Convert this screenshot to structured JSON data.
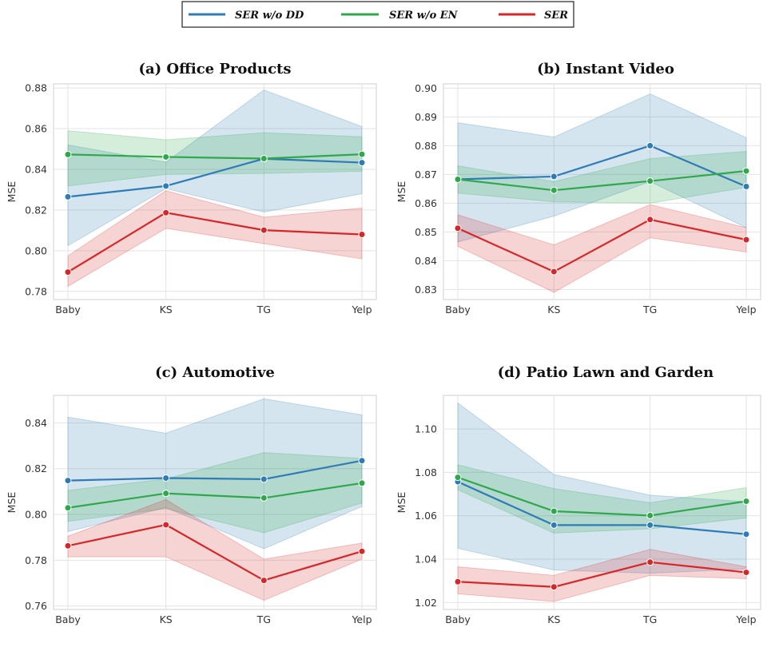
{
  "legend": {
    "entries": [
      {
        "label": "SER w/o DD",
        "color": "#2f7bb5"
      },
      {
        "label": "SER w/o EN",
        "color": "#2ea84a"
      },
      {
        "label": "SER",
        "color": "#d62728"
      }
    ]
  },
  "chart_data": [
    {
      "type": "line",
      "title": "(a) Office Products",
      "categories": [
        "Baby",
        "KS",
        "TG",
        "Yelp"
      ],
      "ylabel": "MSE",
      "ylim": [
        0.776,
        0.882
      ],
      "yticks": [
        0.78,
        0.8,
        0.82,
        0.84,
        0.86,
        0.88
      ],
      "ytick_labels": [
        "0.78",
        "0.80",
        "0.82",
        "0.84",
        "0.86",
        "0.88"
      ],
      "series": [
        {
          "name": "SER w/o DD",
          "color": "#2f7bb5",
          "values": [
            0.8265,
            0.8318,
            0.8452,
            0.8433
          ],
          "lower": [
            0.8025,
            0.8305,
            0.819,
            0.828
          ],
          "upper": [
            0.852,
            0.8435,
            0.879,
            0.861
          ]
        },
        {
          "name": "SER w/o EN",
          "color": "#2ea84a",
          "values": [
            0.8473,
            0.8461,
            0.8453,
            0.8474
          ],
          "lower": [
            0.8318,
            0.8375,
            0.838,
            0.839
          ],
          "upper": [
            0.859,
            0.8545,
            0.858,
            0.856
          ]
        },
        {
          "name": "SER",
          "color": "#d62728",
          "values": [
            0.7895,
            0.8187,
            0.8101,
            0.808
          ],
          "lower": [
            0.7825,
            0.811,
            0.8035,
            0.796
          ],
          "upper": [
            0.7975,
            0.8295,
            0.8165,
            0.821
          ]
        }
      ]
    },
    {
      "type": "line",
      "title": "(b) Instant Video",
      "categories": [
        "Baby",
        "KS",
        "TG",
        "Yelp"
      ],
      "ylabel": "MSE",
      "ylim": [
        0.8265,
        0.9015
      ],
      "yticks": [
        0.83,
        0.84,
        0.85,
        0.86,
        0.87,
        0.88,
        0.89,
        0.9
      ],
      "ytick_labels": [
        "0.83",
        "0.84",
        "0.85",
        "0.86",
        "0.87",
        "0.88",
        "0.89",
        "0.90"
      ],
      "series": [
        {
          "name": "SER w/o DD",
          "color": "#2f7bb5",
          "values": [
            0.8683,
            0.8693,
            0.88,
            0.8658
          ],
          "lower": [
            0.8465,
            0.8555,
            0.8675,
            0.8515
          ],
          "upper": [
            0.888,
            0.883,
            0.898,
            0.8828
          ]
        },
        {
          "name": "SER w/o EN",
          "color": "#2ea84a",
          "values": [
            0.8683,
            0.8645,
            0.8677,
            0.8712
          ],
          "lower": [
            0.8635,
            0.8605,
            0.86,
            0.8655
          ],
          "upper": [
            0.873,
            0.8675,
            0.8755,
            0.878
          ]
        },
        {
          "name": "SER",
          "color": "#d62728",
          "values": [
            0.8513,
            0.8362,
            0.8543,
            0.8473
          ],
          "lower": [
            0.845,
            0.829,
            0.848,
            0.843
          ],
          "upper": [
            0.856,
            0.8455,
            0.8595,
            0.8515
          ]
        }
      ]
    },
    {
      "type": "line",
      "title": "(c) Automotive",
      "categories": [
        "Baby",
        "KS",
        "TG",
        "Yelp"
      ],
      "ylabel": "MSE",
      "ylim": [
        0.7585,
        0.852
      ],
      "yticks": [
        0.76,
        0.78,
        0.8,
        0.82,
        0.84
      ],
      "ytick_labels": [
        "0.76",
        "0.78",
        "0.80",
        "0.82",
        "0.84"
      ],
      "series": [
        {
          "name": "SER w/o DD",
          "color": "#2f7bb5",
          "values": [
            0.8148,
            0.8159,
            0.8154,
            0.8235
          ],
          "lower": [
            0.7925,
            0.803,
            0.785,
            0.8035
          ],
          "upper": [
            0.8425,
            0.8355,
            0.8505,
            0.8435
          ]
        },
        {
          "name": "SER w/o EN",
          "color": "#2ea84a",
          "values": [
            0.8029,
            0.8092,
            0.8072,
            0.8137
          ],
          "lower": [
            0.797,
            0.8025,
            0.792,
            0.805
          ],
          "upper": [
            0.8105,
            0.8155,
            0.827,
            0.8245
          ]
        },
        {
          "name": "SER",
          "color": "#d62728",
          "values": [
            0.7863,
            0.7955,
            0.7712,
            0.7839
          ],
          "lower": [
            0.7815,
            0.7815,
            0.7625,
            0.7805
          ],
          "upper": [
            0.7905,
            0.8065,
            0.7805,
            0.7875
          ]
        }
      ]
    },
    {
      "type": "line",
      "title": "(d) Patio Lawn and Garden",
      "categories": [
        "Baby",
        "KS",
        "TG",
        "Yelp"
      ],
      "ylabel": "MSE",
      "ylim": [
        1.0168,
        1.1155
      ],
      "yticks": [
        1.02,
        1.04,
        1.06,
        1.08,
        1.1
      ],
      "ytick_labels": [
        "1.02",
        "1.04",
        "1.06",
        "1.08",
        "1.10"
      ],
      "series": [
        {
          "name": "SER w/o DD",
          "color": "#2f7bb5",
          "values": [
            1.0757,
            1.0557,
            1.0557,
            1.0515
          ],
          "lower": [
            1.045,
            1.035,
            1.0335,
            1.0355
          ],
          "upper": [
            1.112,
            1.079,
            1.0695,
            1.0665
          ]
        },
        {
          "name": "SER w/o EN",
          "color": "#2ea84a",
          "values": [
            1.0777,
            1.0621,
            1.0601,
            1.0667
          ],
          "lower": [
            1.072,
            1.052,
            1.054,
            1.059
          ],
          "upper": [
            1.0835,
            1.0725,
            1.066,
            1.073
          ]
        },
        {
          "name": "SER",
          "color": "#d62728",
          "values": [
            1.0296,
            1.0272,
            1.0386,
            1.0339
          ],
          "lower": [
            1.024,
            1.0205,
            1.0325,
            1.031
          ],
          "upper": [
            1.0365,
            1.0325,
            1.0445,
            1.0365
          ]
        }
      ]
    }
  ]
}
